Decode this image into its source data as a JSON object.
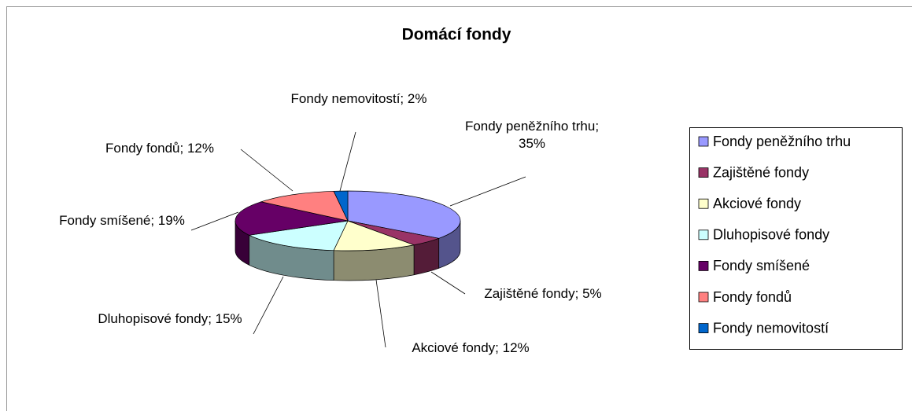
{
  "chart_data": {
    "type": "pie3d",
    "title": "Domácí fondy",
    "categories": [
      "Fondy peněžního trhu",
      "Zajištěné fondy",
      "Akciové fondy",
      "Dluhopisové fondy",
      "Fondy smíšené",
      "Fondy fondů",
      "Fondy nemovitostí"
    ],
    "values": [
      35,
      5,
      12,
      15,
      19,
      12,
      2
    ],
    "value_labels": [
      "Fondy peněžního trhu; 35%",
      "Zajištěné fondy; 5%",
      "Akciové fondy; 12%",
      "Dluhopisové fondy; 15%",
      "Fondy smíšené; 19%",
      "Fondy fondů; 12%",
      "Fondy nemovitostí; 2%"
    ],
    "colors": [
      "#9999ff",
      "#993366",
      "#ffffcc",
      "#ccffff",
      "#660066",
      "#ff8080",
      "#0066cc"
    ],
    "legend": "right"
  }
}
